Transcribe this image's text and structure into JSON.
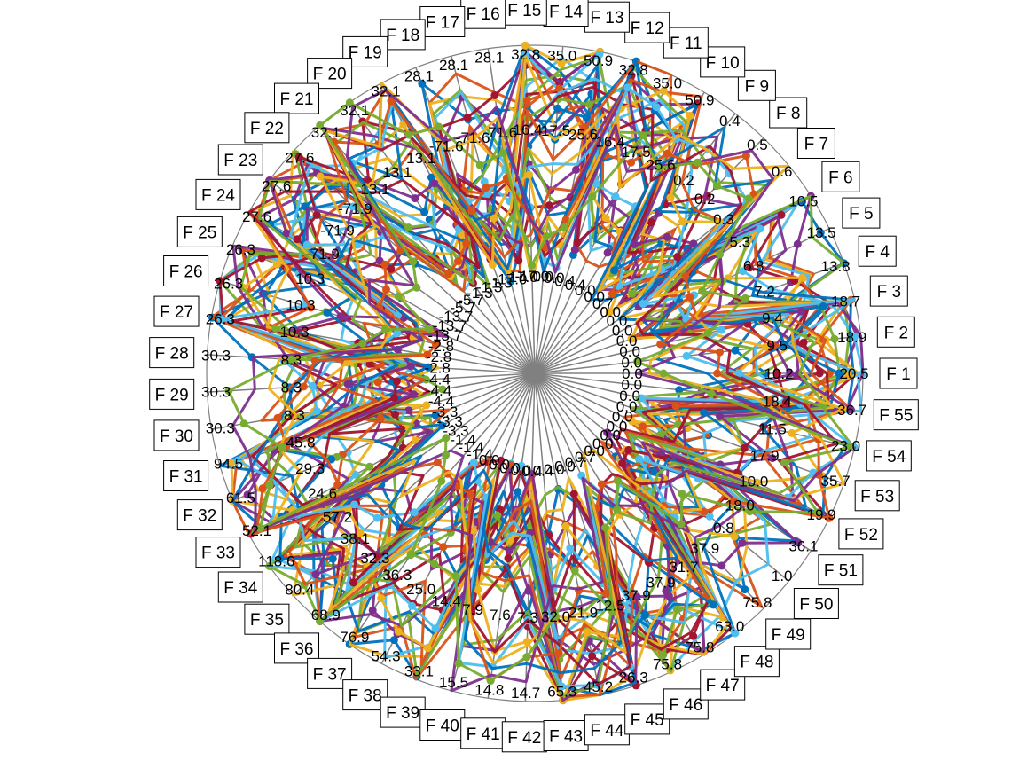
{
  "chart_data": {
    "type": "radar",
    "title": "",
    "features": [
      "F 1",
      "F 2",
      "F 3",
      "F 4",
      "F 5",
      "F 6",
      "F 7",
      "F 8",
      "F 9",
      "F 10",
      "F 11",
      "F 12",
      "F 13",
      "F 14",
      "F 15",
      "F 16",
      "F 17",
      "F 18",
      "F 19",
      "F 20",
      "F 21",
      "F 22",
      "F 23",
      "F 24",
      "F 25",
      "F 26",
      "F 27",
      "F 28",
      "F 29",
      "F 30",
      "F 31",
      "F 32",
      "F 33",
      "F 34",
      "F 35",
      "F 36",
      "F 37",
      "F 38",
      "F 39",
      "F 40",
      "F 41",
      "F 42",
      "F 43",
      "F 44",
      "F 45",
      "F 46",
      "F 47",
      "F 48",
      "F 49",
      "F 50",
      "F 51",
      "F 52",
      "F 53",
      "F 54",
      "F 55"
    ],
    "axis_min": [
      0,
      0,
      0,
      0,
      0,
      0,
      0,
      0,
      0,
      0,
      0,
      0,
      0,
      0,
      -17,
      -17,
      -17,
      -17,
      -17,
      -17,
      -17,
      -17,
      -17,
      -17,
      -17,
      -17,
      -17,
      -17,
      -13.7,
      -13.7,
      -13.7,
      -2.8,
      -2.8,
      -2.8,
      -4.4,
      -4.4,
      -4.4,
      -3.3,
      -3.3,
      -3.3,
      -1.4,
      -1.4,
      0,
      0,
      0,
      0,
      0,
      0,
      0,
      0,
      0,
      0,
      0,
      0,
      0
    ],
    "axis_max": [
      20.5,
      18.9,
      18.7,
      13.8,
      13.5,
      10.5,
      0.6,
      0.5,
      0.4,
      50.9,
      35.0,
      32.8,
      50.9,
      35.0,
      32.8,
      28.1,
      28.1,
      28.1,
      32.1,
      32.1,
      32.1,
      27.6,
      27.6,
      27.6,
      26.3,
      26.3,
      26.3,
      30.3,
      30.3,
      30.3,
      94.5,
      61.5,
      52.1,
      118.6,
      80.4,
      68.9,
      76.9,
      54.3,
      33.1,
      15.5,
      14.8,
      14.7,
      65.3,
      45.2,
      26.3,
      75.8,
      75.8,
      63.0,
      75.8,
      1.0,
      36.1,
      19.9,
      35.7,
      23.0,
      36.7
    ],
    "axis_tick_inner": [
      "0.0",
      "0.0",
      "0.0",
      "0.0",
      "0.0",
      "0.0",
      "0.0",
      "0.7",
      "0.0",
      "0.0",
      "0.4",
      "0.4",
      "0.0",
      "0.0",
      "-17.0",
      "-17.0",
      "-17.0",
      "-1.3",
      "-1.3",
      "-1.3",
      "-5.7",
      "-5.7",
      "-13.7",
      "-13.7",
      "-13.7",
      "-2.8",
      "-2.8",
      "-2.8",
      "-4.4",
      "-4.4",
      "-4.4",
      "-3.3",
      "-3.3",
      "-3.3",
      "-1.4",
      "-1.4",
      "-1.4",
      "0.0",
      "0.0",
      "0.0",
      "0.0",
      "0.4",
      "0.4",
      "0.0",
      "0.0",
      "0.7",
      "0.7",
      "0.0",
      "0.0",
      "0.0",
      "0.0",
      "0.0",
      "0.0",
      "0.0",
      "0.0"
    ],
    "axis_tick_mid": [
      "10.2",
      "9.5",
      "9.4",
      "7.2",
      "6.8",
      "5.3",
      "0.3",
      "0.2",
      "0.2",
      "25.6",
      "17.5",
      "16.4",
      "25.6",
      "17.5",
      "16.4",
      "-71.6",
      "-71.6",
      "-71.6",
      "13.1",
      "13.1",
      "13.1",
      "-71.9",
      "-71.9",
      "-71.9",
      "10.3",
      "10.3",
      "10.3",
      "8.3",
      "8.3",
      "8.3",
      "45.8",
      "29.3",
      "24.6",
      "57.2",
      "38.1",
      "32.3",
      "36.3",
      "25.0",
      "14.4",
      "7.9",
      "7.6",
      "7.3",
      "32.0",
      "21.9",
      "12.5",
      "37.9",
      "37.9",
      "31.7",
      "37.9",
      "0.8",
      "18.0",
      "10.0",
      "17.9",
      "11.5",
      "18.4"
    ],
    "series_count": 40,
    "palette": [
      "#0072BD",
      "#D95319",
      "#EDB120",
      "#7E2F8E",
      "#77AC30",
      "#4DBEEE",
      "#A2142F"
    ],
    "grid": true,
    "legend": "none"
  }
}
